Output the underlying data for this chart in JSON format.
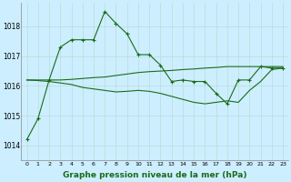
{
  "background_color": "#cceeff",
  "grid_color": "#b8ddd8",
  "line_color": "#1a6b1a",
  "marker": "+",
  "xlabel": "Graphe pression niveau de la mer (hPa)",
  "xlabel_fontsize": 6.5,
  "ylabel_ticks": [
    1014,
    1015,
    1016,
    1017,
    1018
  ],
  "xlim": [
    -0.5,
    23.5
  ],
  "ylim": [
    1013.5,
    1018.8
  ],
  "series": [
    [
      1014.2,
      1014.9,
      1016.2,
      1017.3,
      1017.55,
      1017.55,
      1017.55,
      1018.5,
      1018.1,
      1017.75,
      1017.05,
      1017.05,
      1016.7,
      1016.15,
      1016.2,
      1016.15,
      1016.15,
      1015.75,
      1015.4,
      1016.2,
      1016.2,
      1016.65,
      1016.6,
      1016.6
    ],
    [
      1016.2,
      1016.2,
      1016.2,
      1016.2,
      1016.22,
      1016.25,
      1016.28,
      1016.3,
      1016.35,
      1016.4,
      1016.45,
      1016.48,
      1016.5,
      1016.52,
      1016.55,
      1016.57,
      1016.6,
      1016.62,
      1016.65,
      1016.65,
      1016.65,
      1016.65,
      1016.65,
      1016.65
    ],
    [
      1016.2,
      1016.18,
      1016.15,
      1016.1,
      1016.05,
      1015.95,
      1015.9,
      1015.85,
      1015.8,
      1015.82,
      1015.85,
      1015.82,
      1015.75,
      1015.65,
      1015.55,
      1015.45,
      1015.4,
      1015.45,
      1015.5,
      1015.45,
      1015.85,
      1016.15,
      1016.55,
      1016.6
    ]
  ]
}
